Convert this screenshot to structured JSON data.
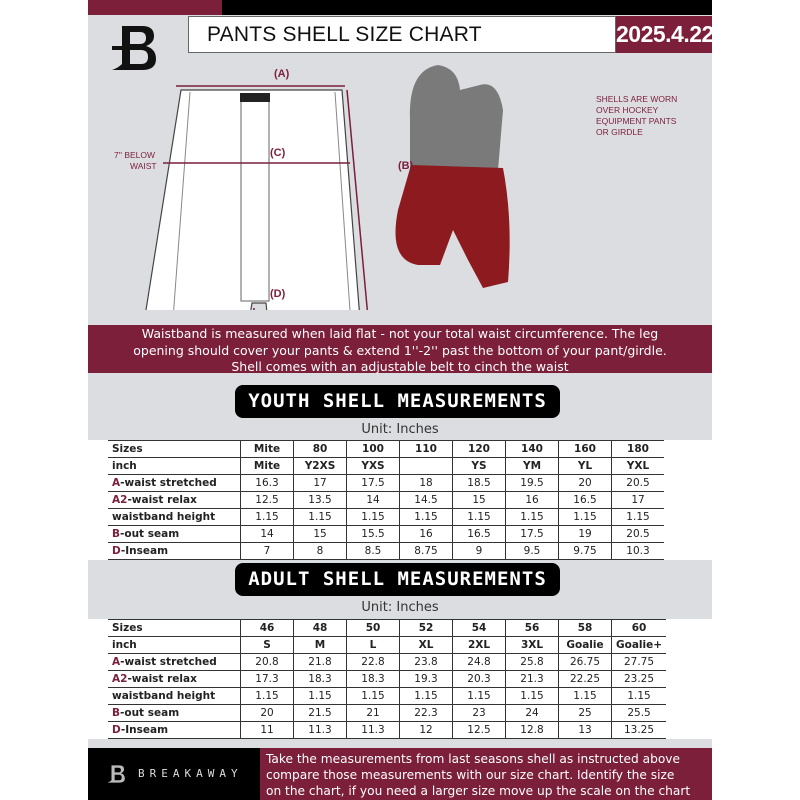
{
  "header": {
    "title": "PANTS SHELL SIZE CHART",
    "date": "2025.4.22"
  },
  "colors": {
    "brand": "#7b1f3a",
    "background": "#dcdde1"
  },
  "diagram": {
    "label_a": "(A)",
    "label_b": "(B)",
    "label_c": "(C)",
    "label_d": "(D)",
    "c_note_line1": "7'' BELOW",
    "c_note_line2": "WAIST",
    "shell_note": [
      "SHELLS ARE WORN",
      "OVER HOCKEY",
      "EQUIPMENT PANTS",
      "OR GIRDLE"
    ]
  },
  "banner": [
    "Waistband is measured when laid flat - not your total waist circumference. The leg",
    "opening should cover your pants & extend 1''-2'' past the bottom of your pant/girdle.",
    "Shell comes with an adjustable belt to cinch the waist"
  ],
  "youth": {
    "title": "YOUTH SHELL MEASUREMENTS",
    "unit": "Unit: Inches",
    "rows": [
      {
        "key": "",
        "rest": "Sizes",
        "values": [
          "Mite",
          "80",
          "100",
          "110",
          "120",
          "140",
          "160",
          "180"
        ]
      },
      {
        "key": "",
        "rest": "inch",
        "values": [
          "Mite",
          "Y2XS",
          "YXS",
          "",
          "YS",
          "YM",
          "YL",
          "YXL"
        ]
      },
      {
        "key": "A",
        "rest": "-waist stretched",
        "values": [
          "16.3",
          "17",
          "17.5",
          "18",
          "18.5",
          "19.5",
          "20",
          "20.5"
        ]
      },
      {
        "key": "A2",
        "rest": "-waist relax",
        "values": [
          "12.5",
          "13.5",
          "14",
          "14.5",
          "15",
          "16",
          "16.5",
          "17"
        ]
      },
      {
        "key": "",
        "rest": "waistband height",
        "values": [
          "1.15",
          "1.15",
          "1.15",
          "1.15",
          "1.15",
          "1.15",
          "1.15",
          "1.15"
        ]
      },
      {
        "key": "B",
        "rest": "-out seam",
        "values": [
          "14",
          "15",
          "15.5",
          "16",
          "16.5",
          "17.5",
          "19",
          "20.5"
        ]
      },
      {
        "key": "D",
        "rest": "-Inseam",
        "values": [
          "7",
          "8",
          "8.5",
          "8.75",
          "9",
          "9.5",
          "9.75",
          "10.3"
        ]
      }
    ]
  },
  "adult": {
    "title": "ADULT SHELL MEASUREMENTS",
    "unit": "Unit: Inches",
    "rows": [
      {
        "key": "",
        "rest": "Sizes",
        "values": [
          "46",
          "48",
          "50",
          "52",
          "54",
          "56",
          "58",
          "60"
        ]
      },
      {
        "key": "",
        "rest": "inch",
        "values": [
          "S",
          "M",
          "L",
          "XL",
          "2XL",
          "3XL",
          "Goalie",
          "Goalie+"
        ]
      },
      {
        "key": "A",
        "rest": "-waist stretched",
        "values": [
          "20.8",
          "21.8",
          "22.8",
          "23.8",
          "24.8",
          "25.8",
          "26.75",
          "27.75"
        ]
      },
      {
        "key": "A2",
        "rest": "-waist relax",
        "values": [
          "17.3",
          "18.3",
          "18.3",
          "19.3",
          "20.3",
          "21.3",
          "22.25",
          "23.25"
        ]
      },
      {
        "key": "",
        "rest": "waistband height",
        "values": [
          "1.15",
          "1.15",
          "1.15",
          "1.15",
          "1.15",
          "1.15",
          "1.15",
          "1.15"
        ]
      },
      {
        "key": "B",
        "rest": "-out seam",
        "values": [
          "20",
          "21.5",
          "21",
          "22.3",
          "23",
          "24",
          "25",
          "25.5"
        ]
      },
      {
        "key": "D",
        "rest": "-Inseam",
        "values": [
          "11",
          "11.3",
          "11.3",
          "12",
          "12.5",
          "12.8",
          "13",
          "13.25"
        ]
      }
    ]
  },
  "footer": {
    "brand": "BREAKAWAY",
    "lines": [
      "Take the measurements from last seasons shell as instructed above",
      "compare those measurements  with our size chart. Identify the size",
      "on the chart, if you need a larger size move up the scale on the chart"
    ]
  }
}
